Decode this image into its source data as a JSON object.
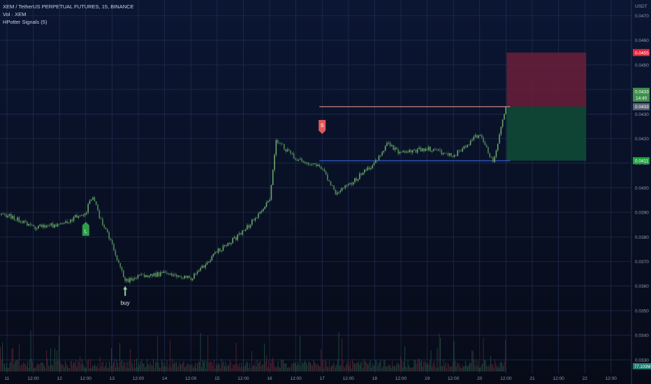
{
  "header": {
    "symbol_line": "XEM / TetherUS PERPETUAL FUTURES, 15, BINANCE",
    "indicator_1": "Vol · XEM",
    "indicator_2": "HPotter Signals (5)"
  },
  "price_axis": {
    "currency": "USDT",
    "ticks": [
      "0.0470",
      "0.0460",
      "0.0450",
      "0.0440",
      "0.0430",
      "0.0420",
      "0.0410",
      "0.0400",
      "0.0390",
      "0.0380",
      "0.0370",
      "0.0360",
      "0.0350",
      "0.0340",
      "0.0330"
    ]
  },
  "price_badges": {
    "stop": "0.0455",
    "last": "0.0433",
    "countdown": "14:40",
    "entry": "0.0433",
    "target": "0.0411",
    "volume": "77.103M"
  },
  "time_axis": {
    "labels": [
      "11",
      "12:00",
      "12",
      "12:00",
      "13",
      "12:00",
      "14",
      "12:00",
      "15",
      "12:00",
      "16",
      "12:00",
      "17",
      "12:00",
      "18",
      "12:00",
      "19",
      "12:00",
      "20",
      "12:00",
      "21",
      "12:00",
      "22",
      "12:00"
    ]
  },
  "signals": {
    "long_label": "L",
    "short_label": "S",
    "buy_label": "buy"
  },
  "colors": {
    "background_top": "#0b1633",
    "background_bottom": "#070b18",
    "candle_up": "#6aa86a",
    "candle_down": "#4e8a55",
    "stop_zone": "#6b1f3a",
    "target_zone": "#0f4a35",
    "stop_badge": "#e3263a",
    "target_badge": "#1fa33d",
    "long_signal": "#2e9e4a",
    "short_signal": "#e05a5a",
    "entry_line": "#c98080",
    "blue_line": "#3566d8"
  },
  "chart_data": {
    "type": "candlestick",
    "symbol": "XEM / TetherUS PERPETUAL FUTURES",
    "interval": "15",
    "exchange": "BINANCE",
    "y_unit": "USDT",
    "ylim": [
      0.0327,
      0.0477
    ],
    "x_range": [
      "11",
      "22 12:00"
    ],
    "price_path": [
      {
        "t": "11",
        "price": 0.0389
      },
      {
        "t": "11 12:00",
        "price": 0.0384
      },
      {
        "t": "12",
        "price": 0.0385
      },
      {
        "t": "12 12:00",
        "price": 0.039
      },
      {
        "t": "12 15:00",
        "price": 0.0397
      },
      {
        "t": "12 18:00",
        "price": 0.0389
      },
      {
        "t": "13",
        "price": 0.0377
      },
      {
        "t": "13 06:00",
        "price": 0.0362
      },
      {
        "t": "13 12:00",
        "price": 0.0364
      },
      {
        "t": "14",
        "price": 0.0365
      },
      {
        "t": "14 12:00",
        "price": 0.0363
      },
      {
        "t": "15",
        "price": 0.0374
      },
      {
        "t": "15 12:00",
        "price": 0.0382
      },
      {
        "t": "16",
        "price": 0.0395
      },
      {
        "t": "16 03:00",
        "price": 0.0419
      },
      {
        "t": "16 12:00",
        "price": 0.0412
      },
      {
        "t": "17",
        "price": 0.0408
      },
      {
        "t": "17 06:00",
        "price": 0.0398
      },
      {
        "t": "17 12:00",
        "price": 0.0401
      },
      {
        "t": "18",
        "price": 0.041
      },
      {
        "t": "18 06:00",
        "price": 0.0418
      },
      {
        "t": "18 12:00",
        "price": 0.0414
      },
      {
        "t": "19",
        "price": 0.0416
      },
      {
        "t": "19 12:00",
        "price": 0.0413
      },
      {
        "t": "20",
        "price": 0.0422
      },
      {
        "t": "20 06:00",
        "price": 0.041
      },
      {
        "t": "20 12:00",
        "price": 0.0433
      }
    ],
    "long_short_position": {
      "entry": 0.0433,
      "stop": 0.0455,
      "target": 0.0411,
      "from": "20 12:00",
      "to": "22"
    },
    "horizontal_lines": [
      {
        "price": 0.0433,
        "from": "17",
        "to": "20 12:00"
      },
      {
        "price": 0.0411,
        "from": "17",
        "to": "20 12:00"
      }
    ],
    "signals": [
      {
        "type": "L",
        "t": "12 12:00",
        "price": 0.0383
      },
      {
        "type": "S",
        "t": "17",
        "price": 0.0425
      },
      {
        "type": "buy",
        "t": "13 06:00",
        "price": 0.036
      }
    ],
    "grid": true,
    "volume_pane": true
  }
}
